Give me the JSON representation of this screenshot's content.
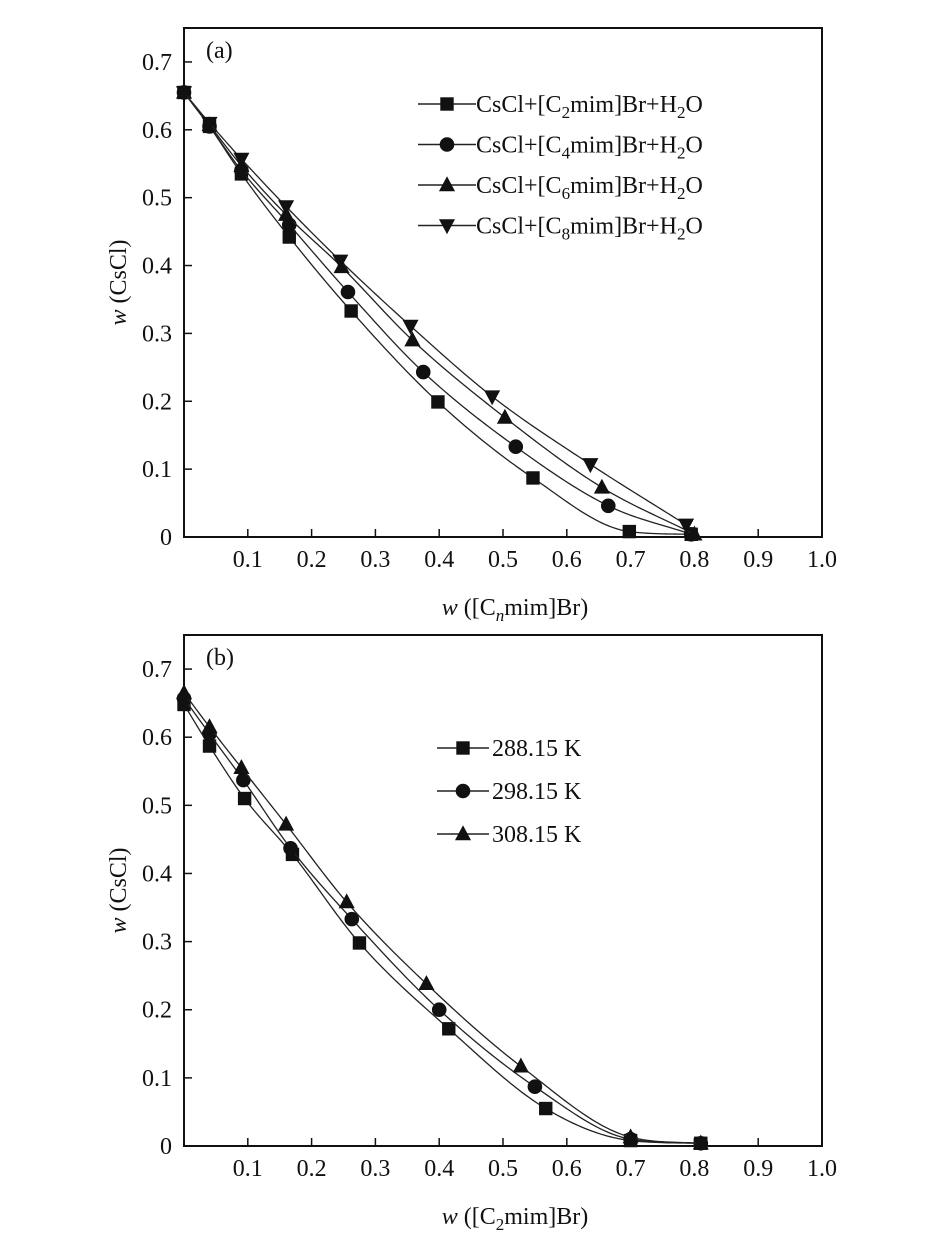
{
  "chart_data": [
    {
      "type": "line",
      "panel_label": "(a)",
      "xlabel": {
        "italic": "w",
        "text": " ([C",
        "sub": "n",
        "rest": "mim]Br)"
      },
      "ylabel": {
        "italic": "w",
        "text": " (CsCl)"
      },
      "xlim": [
        0,
        1.0
      ],
      "ylim": [
        0,
        0.75
      ],
      "x_ticks": [
        0.1,
        0.2,
        0.3,
        0.4,
        0.5,
        0.6,
        0.7,
        0.8,
        0.9,
        1.0
      ],
      "x_tick_labels": [
        "0.1",
        "0.2",
        "0.3",
        "0.4",
        "0.5",
        "0.6",
        "0.7",
        "0.8",
        "0.9",
        "1.0"
      ],
      "y_ticks": [
        0,
        0.1,
        0.2,
        0.3,
        0.4,
        0.5,
        0.6,
        0.7
      ],
      "y_tick_labels": [
        "0",
        "0.1",
        "0.2",
        "0.3",
        "0.4",
        "0.5",
        "0.6",
        "0.7"
      ],
      "legend_position": "top-right",
      "series": [
        {
          "name": "CsCl+[C2mim]Br+H2O",
          "legend": {
            "pre": "CsCl+[C",
            "sub1": "2",
            "mid": "mim]Br+H",
            "sub2": "2",
            "post": "O"
          },
          "marker": "square",
          "x": [
            0.0,
            0.04,
            0.09,
            0.165,
            0.262,
            0.398,
            0.547,
            0.698,
            0.795
          ],
          "y": [
            0.655,
            0.605,
            0.535,
            0.442,
            0.333,
            0.199,
            0.087,
            0.008,
            0.004
          ]
        },
        {
          "name": "CsCl+[C4mim]Br+H2O",
          "legend": {
            "pre": "CsCl+[C",
            "sub1": "4",
            "mid": "mim]Br+H",
            "sub2": "2",
            "post": "O"
          },
          "marker": "circle",
          "x": [
            0.0,
            0.04,
            0.09,
            0.165,
            0.257,
            0.375,
            0.52,
            0.665,
            0.795
          ],
          "y": [
            0.655,
            0.605,
            0.54,
            0.46,
            0.361,
            0.243,
            0.133,
            0.046,
            0.004
          ]
        },
        {
          "name": "CsCl+[C6mim]Br+H2O",
          "legend": {
            "pre": "CsCl+[C",
            "sub1": "6",
            "mid": "mim]Br+H",
            "sub2": "2",
            "post": "O"
          },
          "marker": "triangle-up",
          "x": [
            0.0,
            0.04,
            0.09,
            0.16,
            0.247,
            0.358,
            0.503,
            0.655,
            0.8
          ],
          "y": [
            0.655,
            0.607,
            0.547,
            0.475,
            0.398,
            0.29,
            0.176,
            0.073,
            0.004
          ]
        },
        {
          "name": "CsCl+[C8mim]Br+H2O",
          "legend": {
            "pre": "CsCl+[C",
            "sub1": "8",
            "mid": "mim]Br+H",
            "sub2": "2",
            "post": "O"
          },
          "marker": "triangle-down",
          "x": [
            0.0,
            0.04,
            0.09,
            0.16,
            0.245,
            0.355,
            0.483,
            0.637,
            0.787
          ],
          "y": [
            0.655,
            0.61,
            0.557,
            0.487,
            0.407,
            0.311,
            0.207,
            0.107,
            0.018
          ]
        }
      ]
    },
    {
      "type": "line",
      "panel_label": "(b)",
      "xlabel": {
        "italic": "w",
        "text": " ([C",
        "sub": "2",
        "rest": "mim]Br)"
      },
      "ylabel": {
        "italic": "w",
        "text": " (CsCl)"
      },
      "xlim": [
        0,
        1.0
      ],
      "ylim": [
        0,
        0.75
      ],
      "x_ticks": [
        0.1,
        0.2,
        0.3,
        0.4,
        0.5,
        0.6,
        0.7,
        0.8,
        0.9,
        1.0
      ],
      "x_tick_labels": [
        "0.1",
        "0.2",
        "0.3",
        "0.4",
        "0.5",
        "0.6",
        "0.7",
        "0.8",
        "0.9",
        "1.0"
      ],
      "y_ticks": [
        0,
        0.1,
        0.2,
        0.3,
        0.4,
        0.5,
        0.6,
        0.7
      ],
      "y_tick_labels": [
        "0",
        "0.1",
        "0.2",
        "0.3",
        "0.4",
        "0.5",
        "0.6",
        "0.7"
      ],
      "legend_position": "top-center",
      "series": [
        {
          "name": "288.15 K",
          "legend": {
            "pre": "288.15 K"
          },
          "marker": "square",
          "x": [
            0.0,
            0.04,
            0.095,
            0.17,
            0.275,
            0.415,
            0.567,
            0.7,
            0.81
          ],
          "y": [
            0.648,
            0.587,
            0.51,
            0.428,
            0.298,
            0.172,
            0.055,
            0.008,
            0.004
          ]
        },
        {
          "name": "298.15 K",
          "legend": {
            "pre": "298.15 K"
          },
          "marker": "circle",
          "x": [
            0.0,
            0.04,
            0.093,
            0.167,
            0.263,
            0.4,
            0.55,
            0.7,
            0.81
          ],
          "y": [
            0.657,
            0.605,
            0.537,
            0.437,
            0.333,
            0.2,
            0.087,
            0.01,
            0.004
          ]
        },
        {
          "name": "308.15 K",
          "legend": {
            "pre": "308.15 K"
          },
          "marker": "triangle-up",
          "x": [
            0.0,
            0.04,
            0.09,
            0.16,
            0.255,
            0.38,
            0.528,
            0.7,
            0.81
          ],
          "y": [
            0.665,
            0.615,
            0.555,
            0.472,
            0.358,
            0.238,
            0.117,
            0.013,
            0.004
          ]
        }
      ]
    }
  ]
}
